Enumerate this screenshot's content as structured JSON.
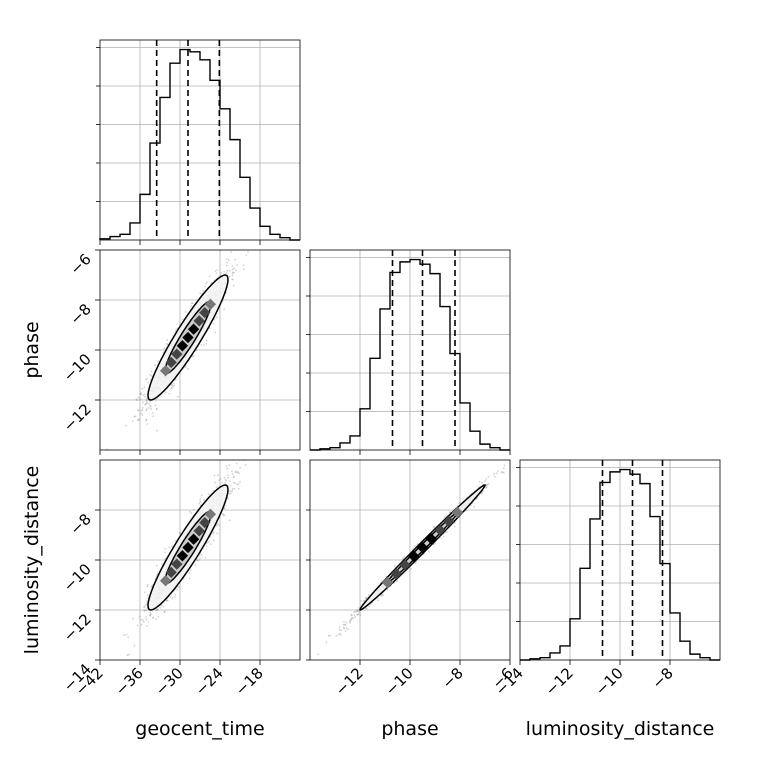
{
  "chart_data": {
    "type": "corner",
    "parameters": [
      "geocent_time",
      "phase",
      "luminosity_distance"
    ],
    "axis_labels": {
      "x": [
        "geocent_time",
        "phase",
        "luminosity_distance"
      ],
      "y": [
        "phase",
        "luminosity_distance"
      ]
    },
    "ranges": {
      "geocent_time": [
        -42,
        -12
      ],
      "phase": [
        -14,
        -6
      ],
      "luminosity_distance": [
        -14,
        -6
      ]
    },
    "ticks": {
      "geocent_time": [
        -42,
        -36,
        -30,
        -24,
        -18
      ],
      "phase_x": [
        -12,
        -10,
        -8,
        -6
      ],
      "phase_y": [
        -6,
        -8,
        -10,
        -12
      ],
      "luminosity_distance_x": [
        -14,
        -12,
        -10,
        -8
      ],
      "luminosity_distance_y": [
        -8,
        -10,
        -12,
        -14
      ]
    },
    "tick_labels": {
      "geocent_time": [
        "−42",
        "−36",
        "−30",
        "−24",
        "−18"
      ],
      "phase_x": [
        "−12",
        "−10",
        "−8",
        "−6"
      ],
      "phase_y": [
        "−6",
        "−8",
        "−10",
        "−12"
      ],
      "luminosity_distance_x": [
        "−14",
        "−12",
        "−10",
        "−8"
      ],
      "luminosity_distance_y": [
        "−8",
        "−10",
        "−12",
        "−14"
      ]
    },
    "quantiles": {
      "geocent_time": [
        -33.5,
        -28.8,
        -24.1
      ],
      "phase": [
        -10.7,
        -9.5,
        -8.2
      ],
      "luminosity_distance": [
        -10.7,
        -9.5,
        -8.3
      ]
    },
    "histograms": {
      "geocent_time": {
        "bin_edges": [
          -42,
          -40.5,
          -39,
          -37.5,
          -36,
          -34.5,
          -33,
          -31.5,
          -30,
          -28.5,
          -27,
          -25.5,
          -24,
          -22.5,
          -21,
          -19.5,
          -18,
          -16.5,
          -15,
          -13.5,
          -12
        ],
        "counts": [
          1,
          3,
          5,
          15,
          40,
          85,
          125,
          155,
          167,
          165,
          158,
          140,
          115,
          88,
          55,
          28,
          12,
          5,
          2,
          0
        ]
      },
      "phase": {
        "bin_edges": [
          -14,
          -13.6,
          -13.2,
          -12.8,
          -12.4,
          -12,
          -11.6,
          -11.2,
          -10.8,
          -10.4,
          -10,
          -9.6,
          -9.2,
          -8.8,
          -8.4,
          -8,
          -7.6,
          -7.2,
          -6.8,
          -6.4,
          -6
        ],
        "counts": [
          0,
          1,
          2,
          6,
          12,
          35,
          78,
          120,
          151,
          160,
          162,
          158,
          150,
          122,
          82,
          40,
          16,
          5,
          2,
          0
        ]
      },
      "luminosity_distance": {
        "bin_edges": [
          -14,
          -13.6,
          -13.2,
          -12.8,
          -12.4,
          -12,
          -11.6,
          -11.2,
          -10.8,
          -10.4,
          -10,
          -9.6,
          -9.2,
          -8.8,
          -8.4,
          -8,
          -7.6,
          -7.2,
          -6.8,
          -6.4,
          -6
        ],
        "counts": [
          0,
          1,
          2,
          6,
          12,
          35,
          78,
          120,
          151,
          160,
          162,
          158,
          150,
          122,
          82,
          40,
          16,
          5,
          2,
          0
        ]
      }
    },
    "correlations": {
      "geocent_time_vs_phase": 0.93,
      "geocent_time_vs_luminosity_distance": 0.93,
      "phase_vs_luminosity_distance": 0.995
    },
    "grid": true,
    "colors": {
      "line": "#000000",
      "grid": "#b0b0b0",
      "points": "#808080"
    }
  }
}
